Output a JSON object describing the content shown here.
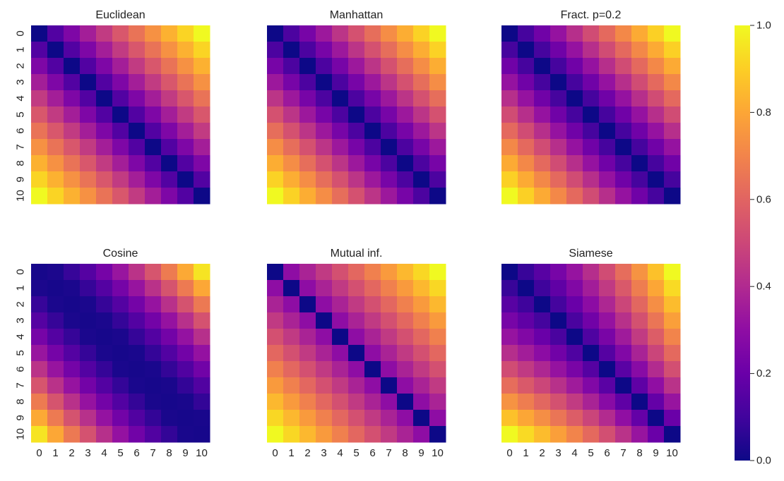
{
  "chart_data": [
    {
      "type": "heatmap",
      "title": "Euclidean",
      "metric": "euclidean",
      "x": [
        "0",
        "1",
        "2",
        "3",
        "4",
        "5",
        "6",
        "7",
        "8",
        "9",
        "10"
      ],
      "y": [
        "0",
        "1",
        "2",
        "3",
        "4",
        "5",
        "6",
        "7",
        "8",
        "9",
        "10"
      ],
      "show_xticks": false,
      "show_yticks": true,
      "value_range": [
        0.0,
        1.0
      ]
    },
    {
      "type": "heatmap",
      "title": "Manhattan",
      "metric": "manhattan",
      "x": [
        "0",
        "1",
        "2",
        "3",
        "4",
        "5",
        "6",
        "7",
        "8",
        "9",
        "10"
      ],
      "y": [
        "0",
        "1",
        "2",
        "3",
        "4",
        "5",
        "6",
        "7",
        "8",
        "9",
        "10"
      ],
      "show_xticks": false,
      "show_yticks": false,
      "value_range": [
        0.0,
        1.0
      ]
    },
    {
      "type": "heatmap",
      "title": "Fract. p=0.2",
      "metric": "fractional",
      "x": [
        "0",
        "1",
        "2",
        "3",
        "4",
        "5",
        "6",
        "7",
        "8",
        "9",
        "10"
      ],
      "y": [
        "0",
        "1",
        "2",
        "3",
        "4",
        "5",
        "6",
        "7",
        "8",
        "9",
        "10"
      ],
      "show_xticks": false,
      "show_yticks": false,
      "value_range": [
        0.0,
        1.0
      ]
    },
    {
      "type": "heatmap",
      "title": "Cosine",
      "metric": "cosine",
      "x": [
        "0",
        "1",
        "2",
        "3",
        "4",
        "5",
        "6",
        "7",
        "8",
        "9",
        "10"
      ],
      "y": [
        "0",
        "1",
        "2",
        "3",
        "4",
        "5",
        "6",
        "7",
        "8",
        "9",
        "10"
      ],
      "show_xticks": true,
      "show_yticks": true,
      "value_range": [
        0.0,
        1.0
      ]
    },
    {
      "type": "heatmap",
      "title": "Mutual inf.",
      "metric": "mutual",
      "x": [
        "0",
        "1",
        "2",
        "3",
        "4",
        "5",
        "6",
        "7",
        "8",
        "9",
        "10"
      ],
      "y": [
        "0",
        "1",
        "2",
        "3",
        "4",
        "5",
        "6",
        "7",
        "8",
        "9",
        "10"
      ],
      "show_xticks": true,
      "show_yticks": false,
      "value_range": [
        0.0,
        1.0
      ]
    },
    {
      "type": "heatmap",
      "title": "Siamese",
      "metric": "siamese",
      "x": [
        "0",
        "1",
        "2",
        "3",
        "4",
        "5",
        "6",
        "7",
        "8",
        "9",
        "10"
      ],
      "y": [
        "0",
        "1",
        "2",
        "3",
        "4",
        "5",
        "6",
        "7",
        "8",
        "9",
        "10"
      ],
      "show_xticks": true,
      "show_yticks": false,
      "value_range": [
        0.0,
        1.0
      ]
    }
  ],
  "colorbar": {
    "colormap": "plasma",
    "min": 0.0,
    "max": 1.0,
    "ticks": [
      "0.0",
      "0.2",
      "0.4",
      "0.6",
      "0.8",
      "1.0"
    ]
  },
  "colors": {
    "plasma_stops": [
      "#0d0887",
      "#41049d",
      "#6a00a8",
      "#8f0da4",
      "#b12a90",
      "#cc4778",
      "#e16462",
      "#f2844b",
      "#fca636",
      "#fcce25",
      "#f0f921"
    ]
  }
}
